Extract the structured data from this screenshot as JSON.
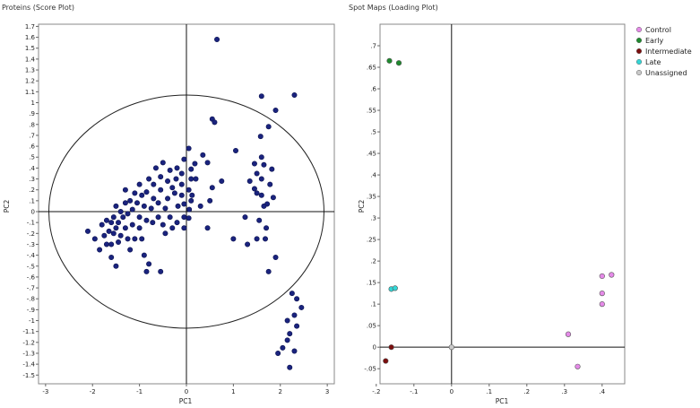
{
  "chart_data": [
    {
      "type": "scatter",
      "title": "Proteins (Score Plot)",
      "xlabel": "PC1",
      "ylabel": "PC2",
      "xlim": [
        -3.15,
        3.15
      ],
      "ylim": [
        -1.58,
        1.72
      ],
      "xticks": [
        -3,
        -2,
        -1,
        0,
        1,
        2,
        3
      ],
      "yticks": [
        1.7,
        1.6,
        1.5,
        1.4,
        1.3,
        1.2,
        1.1,
        1,
        0.9,
        0.8,
        0.7,
        0.6,
        0.5,
        0.4,
        0.3,
        0.2,
        0.1,
        0,
        -0.1,
        -0.2,
        -0.3,
        -0.4,
        -0.5,
        -0.6,
        -0.7,
        -0.8,
        -0.9,
        -1,
        -1.1,
        -1.2,
        -1.3,
        -1.4,
        -1.5
      ],
      "ellipse": {
        "cx": 0,
        "cy": 0,
        "rx": 2.93,
        "ry": 1.07
      },
      "grid": false,
      "marker_color": "#1a237e",
      "points": [
        [
          0.65,
          1.58
        ],
        [
          2.3,
          1.07
        ],
        [
          1.6,
          1.06
        ],
        [
          1.9,
          0.93
        ],
        [
          1.75,
          0.78
        ],
        [
          1.58,
          0.69
        ],
        [
          0.55,
          0.85
        ],
        [
          0.6,
          0.82
        ],
        [
          1.05,
          0.56
        ],
        [
          1.6,
          0.5
        ],
        [
          1.45,
          0.44
        ],
        [
          1.65,
          0.43
        ],
        [
          1.82,
          0.39
        ],
        [
          1.5,
          0.35
        ],
        [
          1.6,
          0.3
        ],
        [
          1.35,
          0.28
        ],
        [
          1.78,
          0.25
        ],
        [
          1.45,
          0.21
        ],
        [
          1.5,
          0.17
        ],
        [
          1.6,
          0.15
        ],
        [
          1.85,
          0.13
        ],
        [
          1.72,
          0.07
        ],
        [
          1.25,
          -0.05
        ],
        [
          1.55,
          -0.08
        ],
        [
          1.65,
          0.05
        ],
        [
          1.0,
          -0.25
        ],
        [
          1.3,
          -0.3
        ],
        [
          1.5,
          -0.25
        ],
        [
          1.68,
          -0.25
        ],
        [
          1.7,
          -0.15
        ],
        [
          1.9,
          -0.42
        ],
        [
          1.75,
          -0.55
        ],
        [
          0.75,
          0.28
        ],
        [
          0.45,
          0.45
        ],
        [
          0.35,
          0.52
        ],
        [
          0.18,
          0.44
        ],
        [
          0.05,
          0.58
        ],
        [
          0.1,
          0.39
        ],
        [
          0.1,
          0.3
        ],
        [
          0.05,
          0.2
        ],
        [
          0.12,
          0.15
        ],
        [
          0.1,
          0.1
        ],
        [
          0.06,
          0.02
        ],
        [
          0.05,
          -0.06
        ],
        [
          -0.05,
          0.48
        ],
        [
          -0.1,
          0.35
        ],
        [
          -0.1,
          0.25
        ],
        [
          -0.1,
          0.15
        ],
        [
          -0.05,
          0.07
        ],
        [
          -0.05,
          -0.05
        ],
        [
          -0.2,
          0.4
        ],
        [
          -0.22,
          0.3
        ],
        [
          -0.25,
          0.17
        ],
        [
          -0.18,
          0.05
        ],
        [
          -0.3,
          0.22
        ],
        [
          -0.35,
          0.38
        ],
        [
          -0.4,
          0.28
        ],
        [
          -0.4,
          0.12
        ],
        [
          -0.45,
          0.03
        ],
        [
          -0.35,
          -0.05
        ],
        [
          -0.5,
          0.45
        ],
        [
          -0.55,
          0.32
        ],
        [
          -0.55,
          0.2
        ],
        [
          -0.6,
          0.08
        ],
        [
          -0.6,
          -0.05
        ],
        [
          -0.5,
          -0.12
        ],
        [
          -0.65,
          0.4
        ],
        [
          -0.7,
          0.25
        ],
        [
          -0.7,
          0.12
        ],
        [
          -0.75,
          0.03
        ],
        [
          -0.72,
          -0.1
        ],
        [
          -0.8,
          0.3
        ],
        [
          -0.85,
          0.18
        ],
        [
          -0.9,
          0.05
        ],
        [
          -0.85,
          -0.08
        ],
        [
          -0.95,
          0.15
        ],
        [
          -1.0,
          0.25
        ],
        [
          -1.05,
          0.08
        ],
        [
          -1.0,
          -0.05
        ],
        [
          -1.0,
          -0.15
        ],
        [
          -1.1,
          0.17
        ],
        [
          -1.15,
          0.02
        ],
        [
          -1.15,
          -0.12
        ],
        [
          -1.2,
          0.1
        ],
        [
          -1.25,
          -0.02
        ],
        [
          -1.3,
          0.2
        ],
        [
          -1.3,
          0.08
        ],
        [
          -1.35,
          -0.05
        ],
        [
          -1.3,
          -0.15
        ],
        [
          -1.25,
          -0.25
        ],
        [
          -1.4,
          0.0
        ],
        [
          -1.45,
          -0.1
        ],
        [
          -1.4,
          -0.22
        ],
        [
          -1.5,
          0.05
        ],
        [
          -1.55,
          -0.05
        ],
        [
          -1.5,
          -0.15
        ],
        [
          -1.45,
          -0.28
        ],
        [
          -1.6,
          -0.1
        ],
        [
          -1.65,
          -0.18
        ],
        [
          -1.55,
          -0.2
        ],
        [
          -1.7,
          -0.08
        ],
        [
          -1.75,
          -0.22
        ],
        [
          -1.7,
          -0.3
        ],
        [
          -1.6,
          -0.3
        ],
        [
          -1.8,
          -0.12
        ],
        [
          -1.6,
          -0.42
        ],
        [
          -1.5,
          -0.5
        ],
        [
          -1.85,
          -0.35
        ],
        [
          -1.95,
          -0.25
        ],
        [
          -2.1,
          -0.18
        ],
        [
          -1.1,
          -0.25
        ],
        [
          -1.2,
          -0.35
        ],
        [
          -0.95,
          -0.25
        ],
        [
          -0.9,
          -0.4
        ],
        [
          -0.8,
          -0.48
        ],
        [
          -0.85,
          -0.55
        ],
        [
          -0.55,
          -0.55
        ],
        [
          -0.45,
          -0.2
        ],
        [
          -0.3,
          -0.15
        ],
        [
          -0.2,
          -0.1
        ],
        [
          -0.05,
          -0.15
        ],
        [
          0.45,
          -0.15
        ],
        [
          0.3,
          0.05
        ],
        [
          0.5,
          0.1
        ],
        [
          0.55,
          0.22
        ],
        [
          0.2,
          0.3
        ],
        [
          2.25,
          -0.75
        ],
        [
          2.35,
          -0.8
        ],
        [
          2.45,
          -0.88
        ],
        [
          2.3,
          -0.95
        ],
        [
          2.15,
          -1.0
        ],
        [
          2.35,
          -1.05
        ],
        [
          2.2,
          -1.12
        ],
        [
          2.15,
          -1.18
        ],
        [
          2.05,
          -1.25
        ],
        [
          2.3,
          -1.28
        ],
        [
          1.95,
          -1.3
        ],
        [
          2.2,
          -1.43
        ]
      ]
    },
    {
      "type": "scatter",
      "title": "Spot Maps (Loading Plot)",
      "xlabel": "PC1",
      "ylabel": "PC2",
      "xlim": [
        -0.19,
        0.46
      ],
      "ylim": [
        -0.085,
        0.75
      ],
      "xticks": [
        -0.2,
        -0.1,
        0,
        0.1,
        0.2,
        0.3,
        0.4
      ],
      "yticks": [
        0.7,
        0.65,
        0.6,
        0.55,
        0.5,
        0.45,
        0.4,
        0.35,
        0.3,
        0.25,
        0.2,
        0.15,
        0.1,
        0.05,
        0,
        -0.05
      ],
      "grid": false,
      "legend_position": "right",
      "series": [
        {
          "name": "Control",
          "color": "#e58ae8",
          "points": [
            [
              0.31,
              0.03
            ],
            [
              0.335,
              -0.045
            ],
            [
              0.4,
              0.165
            ],
            [
              0.4,
              0.125
            ],
            [
              0.4,
              0.1
            ],
            [
              0.425,
              0.168
            ]
          ]
        },
        {
          "name": "Early",
          "color": "#1f8a2e",
          "points": [
            [
              -0.165,
              0.665
            ],
            [
              -0.14,
              0.66
            ]
          ]
        },
        {
          "name": "Intermediate",
          "color": "#7a0e0e",
          "points": [
            [
              -0.16,
              0.0
            ],
            [
              -0.175,
              -0.032
            ]
          ]
        },
        {
          "name": "Late",
          "color": "#34d6d6",
          "points": [
            [
              -0.16,
              0.135
            ],
            [
              -0.15,
              0.137
            ]
          ]
        },
        {
          "name": "Unassigned",
          "color": "#c9c9c9",
          "points": [
            [
              0.0,
              0.0
            ]
          ]
        }
      ]
    }
  ]
}
